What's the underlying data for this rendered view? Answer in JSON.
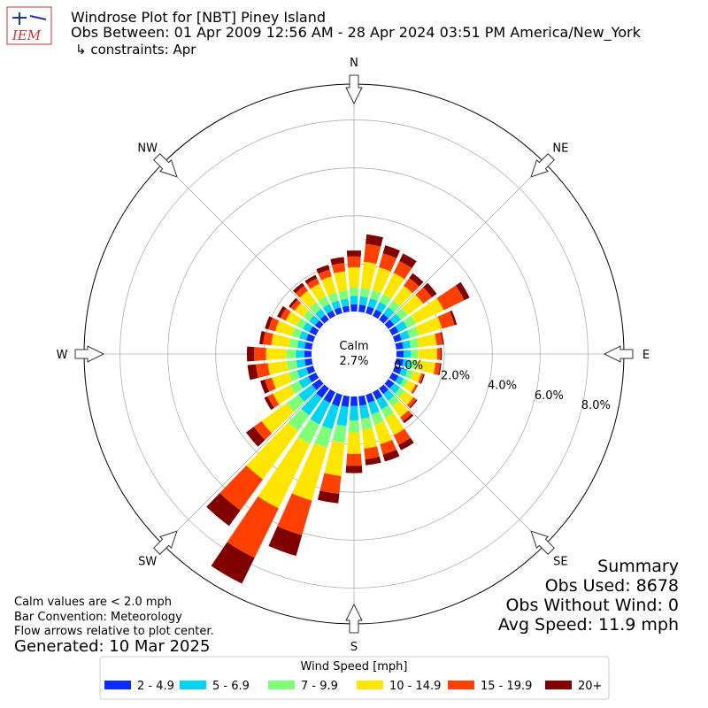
{
  "chart_data": {
    "type": "windrose",
    "title": "Windrose Plot for [NBT] Piney Island",
    "subtitle": "Obs Between: 01 Apr 2009 12:56 AM - 28 Apr 2024 03:51 PM America/New_York",
    "constraints": "↳ constraints: Apr",
    "logo_text": "IEM",
    "direction_labels": [
      "N",
      "NE",
      "E",
      "SE",
      "S",
      "SW",
      "W",
      "NW"
    ],
    "x": [
      0,
      10,
      20,
      30,
      40,
      50,
      60,
      70,
      80,
      90,
      100,
      110,
      120,
      130,
      140,
      150,
      160,
      170,
      180,
      190,
      200,
      210,
      220,
      230,
      240,
      250,
      260,
      270,
      280,
      290,
      300,
      310,
      320,
      330,
      340,
      350
    ],
    "ylim": [
      0,
      9.5
    ],
    "yticks": [
      {
        "value": 0,
        "label": "0.0%"
      },
      {
        "value": 2,
        "label": "2.0%"
      },
      {
        "value": 4,
        "label": "4.0%"
      },
      {
        "value": 6,
        "label": "6.0%"
      },
      {
        "value": 8,
        "label": "8.0%"
      }
    ],
    "grid": true,
    "calm": {
      "label": "Calm",
      "value": 2.7,
      "value_label": "2.7%"
    },
    "legend_title": "Wind Speed [mph]",
    "series": [
      {
        "name": "2 - 4.9",
        "color": "#0a2cff",
        "values": [
          0.3,
          0.3,
          0.3,
          0.3,
          0.3,
          0.3,
          0.3,
          0.3,
          0.3,
          0.3,
          0.3,
          0.3,
          0.3,
          0.3,
          0.3,
          0.35,
          0.35,
          0.4,
          0.4,
          0.45,
          0.5,
          0.5,
          0.5,
          0.4,
          0.35,
          0.3,
          0.3,
          0.3,
          0.3,
          0.3,
          0.3,
          0.25,
          0.25,
          0.25,
          0.25,
          0.25
        ]
      },
      {
        "name": "5 - 6.9",
        "color": "#00d4f4",
        "values": [
          0.35,
          0.35,
          0.35,
          0.35,
          0.35,
          0.35,
          0.4,
          0.35,
          0.3,
          0.3,
          0.3,
          0.25,
          0.25,
          0.3,
          0.35,
          0.45,
          0.5,
          0.55,
          0.6,
          0.8,
          1.0,
          1.0,
          0.9,
          0.7,
          0.45,
          0.4,
          0.35,
          0.35,
          0.3,
          0.3,
          0.3,
          0.3,
          0.3,
          0.3,
          0.3,
          0.3
        ]
      },
      {
        "name": "7 - 9.9",
        "color": "#7dff7a",
        "values": [
          0.35,
          0.35,
          0.35,
          0.35,
          0.35,
          0.35,
          0.4,
          0.4,
          0.35,
          0.3,
          0.3,
          0.25,
          0.2,
          0.25,
          0.3,
          0.4,
          0.45,
          0.45,
          0.5,
          0.7,
          0.8,
          0.9,
          0.8,
          0.6,
          0.4,
          0.35,
          0.4,
          0.4,
          0.35,
          0.35,
          0.3,
          0.3,
          0.35,
          0.35,
          0.35,
          0.35
        ]
      },
      {
        "name": "10 - 14.9",
        "color": "#ffe600",
        "values": [
          0.85,
          1.1,
          1.0,
          1.0,
          0.75,
          0.8,
          1.3,
          1.0,
          0.75,
          0.8,
          0.75,
          0.35,
          0.35,
          0.45,
          0.55,
          0.8,
          0.85,
          0.8,
          0.9,
          1.4,
          2.3,
          3.0,
          2.5,
          1.3,
          0.8,
          0.75,
          0.8,
          0.85,
          0.75,
          0.7,
          0.5,
          0.45,
          0.6,
          0.6,
          0.7,
          0.8
        ]
      },
      {
        "name": "15 - 19.9",
        "color": "#ff4000",
        "values": [
          0.45,
          0.75,
          0.6,
          0.55,
          0.4,
          0.45,
          0.95,
          0.55,
          0.25,
          0.15,
          0.2,
          0.1,
          0.08,
          0.15,
          0.2,
          0.45,
          0.45,
          0.45,
          0.5,
          0.75,
          1.5,
          2.3,
          1.6,
          0.4,
          0.25,
          0.3,
          0.5,
          0.5,
          0.35,
          0.3,
          0.25,
          0.2,
          0.25,
          0.25,
          0.3,
          0.35
        ]
      },
      {
        "name": "20+",
        "color": "#800000",
        "values": [
          0.25,
          0.4,
          0.35,
          0.35,
          0.25,
          0.25,
          0.25,
          0.1,
          0.05,
          0.05,
          0.05,
          0.05,
          0.02,
          0.05,
          0.1,
          0.25,
          0.3,
          0.25,
          0.3,
          0.4,
          0.9,
          1.2,
          0.8,
          0.4,
          0.15,
          0.2,
          0.35,
          0.3,
          0.15,
          0.15,
          0.15,
          0.1,
          0.15,
          0.15,
          0.2,
          0.25
        ]
      }
    ],
    "notes": [
      "Calm values are < 2.0 mph",
      "Bar Convention: Meteorology",
      "Flow arrows relative to plot center."
    ],
    "generated": "Generated: 10 Mar 2025",
    "summary": [
      "Summary",
      "Obs Used: 8678",
      "Obs Without Wind: 0",
      "Avg Speed: 11.9 mph"
    ]
  }
}
